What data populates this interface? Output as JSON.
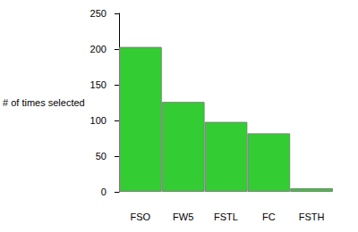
{
  "chart_data": {
    "type": "bar",
    "y_label": "# of times selected",
    "categories": [
      "FSO",
      "FW5",
      "FSTL",
      "FC",
      "FSTH"
    ],
    "values": [
      203,
      126,
      98,
      82,
      5
    ],
    "color": "#33cc33",
    "ylim": [
      0,
      250
    ],
    "yticks": [
      0,
      50,
      100,
      150,
      200,
      250
    ],
    "grid": false
  }
}
